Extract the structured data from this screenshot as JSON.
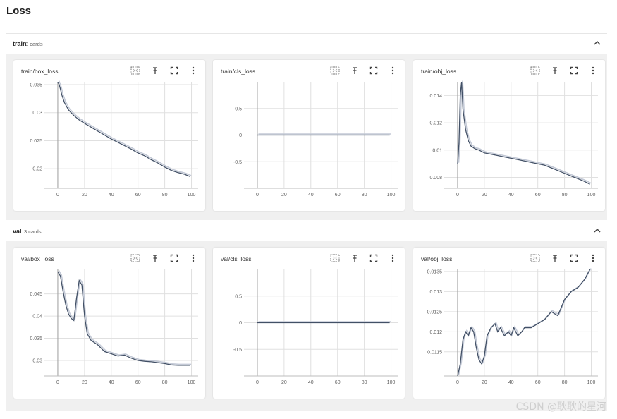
{
  "page": {
    "title": "Loss"
  },
  "groups": [
    {
      "name": "train",
      "count": "3 cards"
    },
    {
      "name": "val",
      "count": "3 cards"
    }
  ],
  "icons": [
    "fit-domain-icon",
    "pin-icon",
    "fullscreen-icon",
    "more-vert-icon",
    "chevron-up-icon"
  ],
  "colors": {
    "line": "#425066",
    "raw": "#c3c9d6",
    "grid": "#e0e0e0",
    "panel": "#f0f0f0"
  },
  "watermark": "CSDN @耿耿的星河",
  "chart_data": [
    {
      "id": "train_box",
      "type": "line",
      "title": "train/box_loss",
      "xlim": [
        -10,
        105
      ],
      "ylim": [
        0.0165,
        0.0355
      ],
      "xticks": [
        0,
        20,
        40,
        60,
        80,
        100
      ],
      "yticks": [
        0.02,
        0.025,
        0.03,
        0.035
      ],
      "x": [
        0,
        1,
        2,
        3,
        5,
        8,
        12,
        16,
        20,
        25,
        30,
        35,
        40,
        45,
        50,
        55,
        60,
        65,
        70,
        75,
        80,
        85,
        90,
        95,
        99
      ],
      "y": [
        0.0355,
        0.035,
        0.0342,
        0.0332,
        0.0318,
        0.0305,
        0.0295,
        0.0287,
        0.0281,
        0.0274,
        0.0267,
        0.026,
        0.0253,
        0.0247,
        0.0241,
        0.0235,
        0.0228,
        0.0223,
        0.0216,
        0.021,
        0.0203,
        0.0197,
        0.0193,
        0.019,
        0.0186
      ]
    },
    {
      "id": "train_cls",
      "type": "line",
      "title": "train/cls_loss",
      "xlim": [
        -10,
        105
      ],
      "ylim": [
        -1,
        1
      ],
      "xticks": [
        0,
        20,
        40,
        60,
        80,
        100
      ],
      "yticks": [
        0.5,
        0,
        -0.5
      ],
      "x": [
        0,
        99
      ],
      "y": [
        0,
        0
      ]
    },
    {
      "id": "train_obj",
      "type": "line",
      "title": "train/obj_loss",
      "xlim": [
        -10,
        105
      ],
      "ylim": [
        0.0072,
        0.015
      ],
      "xticks": [
        0,
        20,
        40,
        60,
        80,
        100
      ],
      "yticks": [
        0.008,
        0.01,
        0.012,
        0.014
      ],
      "x": [
        0,
        1,
        2,
        3,
        4,
        6,
        8,
        10,
        13,
        16,
        20,
        25,
        30,
        35,
        40,
        45,
        50,
        55,
        60,
        65,
        70,
        75,
        80,
        85,
        90,
        95,
        99
      ],
      "y": [
        0.009,
        0.0105,
        0.014,
        0.015,
        0.013,
        0.0115,
        0.0107,
        0.0103,
        0.0101,
        0.01,
        0.0098,
        0.0097,
        0.0096,
        0.0095,
        0.0094,
        0.0093,
        0.0092,
        0.0091,
        0.009,
        0.0089,
        0.0087,
        0.0085,
        0.0083,
        0.0081,
        0.0079,
        0.0077,
        0.0075
      ]
    },
    {
      "id": "val_box",
      "type": "line",
      "title": "val/box_loss",
      "xlim": [
        -10,
        105
      ],
      "ylim": [
        0.0265,
        0.0505
      ],
      "xticks": [
        0,
        20,
        40,
        60,
        80,
        100
      ],
      "yticks": [
        0.03,
        0.035,
        0.04,
        0.045
      ],
      "x": [
        0,
        2,
        4,
        6,
        8,
        10,
        12,
        14,
        16,
        18,
        20,
        22,
        25,
        30,
        35,
        40,
        45,
        50,
        55,
        60,
        65,
        70,
        75,
        80,
        85,
        90,
        95,
        99
      ],
      "y": [
        0.05,
        0.049,
        0.0455,
        0.0425,
        0.0405,
        0.0395,
        0.039,
        0.044,
        0.048,
        0.047,
        0.04,
        0.036,
        0.0345,
        0.0335,
        0.032,
        0.0315,
        0.031,
        0.0312,
        0.0305,
        0.03,
        0.0298,
        0.0297,
        0.0295,
        0.0293,
        0.029,
        0.0289,
        0.0289,
        0.0289
      ]
    },
    {
      "id": "val_cls",
      "type": "line",
      "title": "val/cls_loss",
      "xlim": [
        -10,
        105
      ],
      "ylim": [
        -1,
        1
      ],
      "xticks": [
        0,
        20,
        40,
        60,
        80,
        100
      ],
      "yticks": [
        0.5,
        0,
        -0.5
      ],
      "x": [
        0,
        99
      ],
      "y": [
        0,
        0
      ]
    },
    {
      "id": "val_obj",
      "type": "line",
      "title": "val/obj_loss",
      "xlim": [
        -10,
        105
      ],
      "ylim": [
        0.0109,
        0.01355
      ],
      "xticks": [
        0,
        20,
        40,
        60,
        80,
        100
      ],
      "yticks": [
        0.0115,
        0.012,
        0.0125,
        0.013,
        0.0135
      ],
      "x": [
        0,
        2,
        4,
        6,
        8,
        10,
        12,
        14,
        16,
        18,
        20,
        22,
        25,
        28,
        30,
        32,
        35,
        38,
        40,
        42,
        45,
        48,
        50,
        55,
        60,
        65,
        70,
        75,
        80,
        85,
        90,
        95,
        99
      ],
      "y": [
        0.0109,
        0.0112,
        0.0118,
        0.012,
        0.0119,
        0.0121,
        0.012,
        0.0116,
        0.0113,
        0.0112,
        0.0114,
        0.0119,
        0.0121,
        0.0122,
        0.012,
        0.0121,
        0.0119,
        0.012,
        0.0119,
        0.0121,
        0.0119,
        0.012,
        0.0121,
        0.0121,
        0.0122,
        0.0123,
        0.0125,
        0.0124,
        0.0128,
        0.013,
        0.0131,
        0.0133,
        0.01355
      ]
    }
  ]
}
